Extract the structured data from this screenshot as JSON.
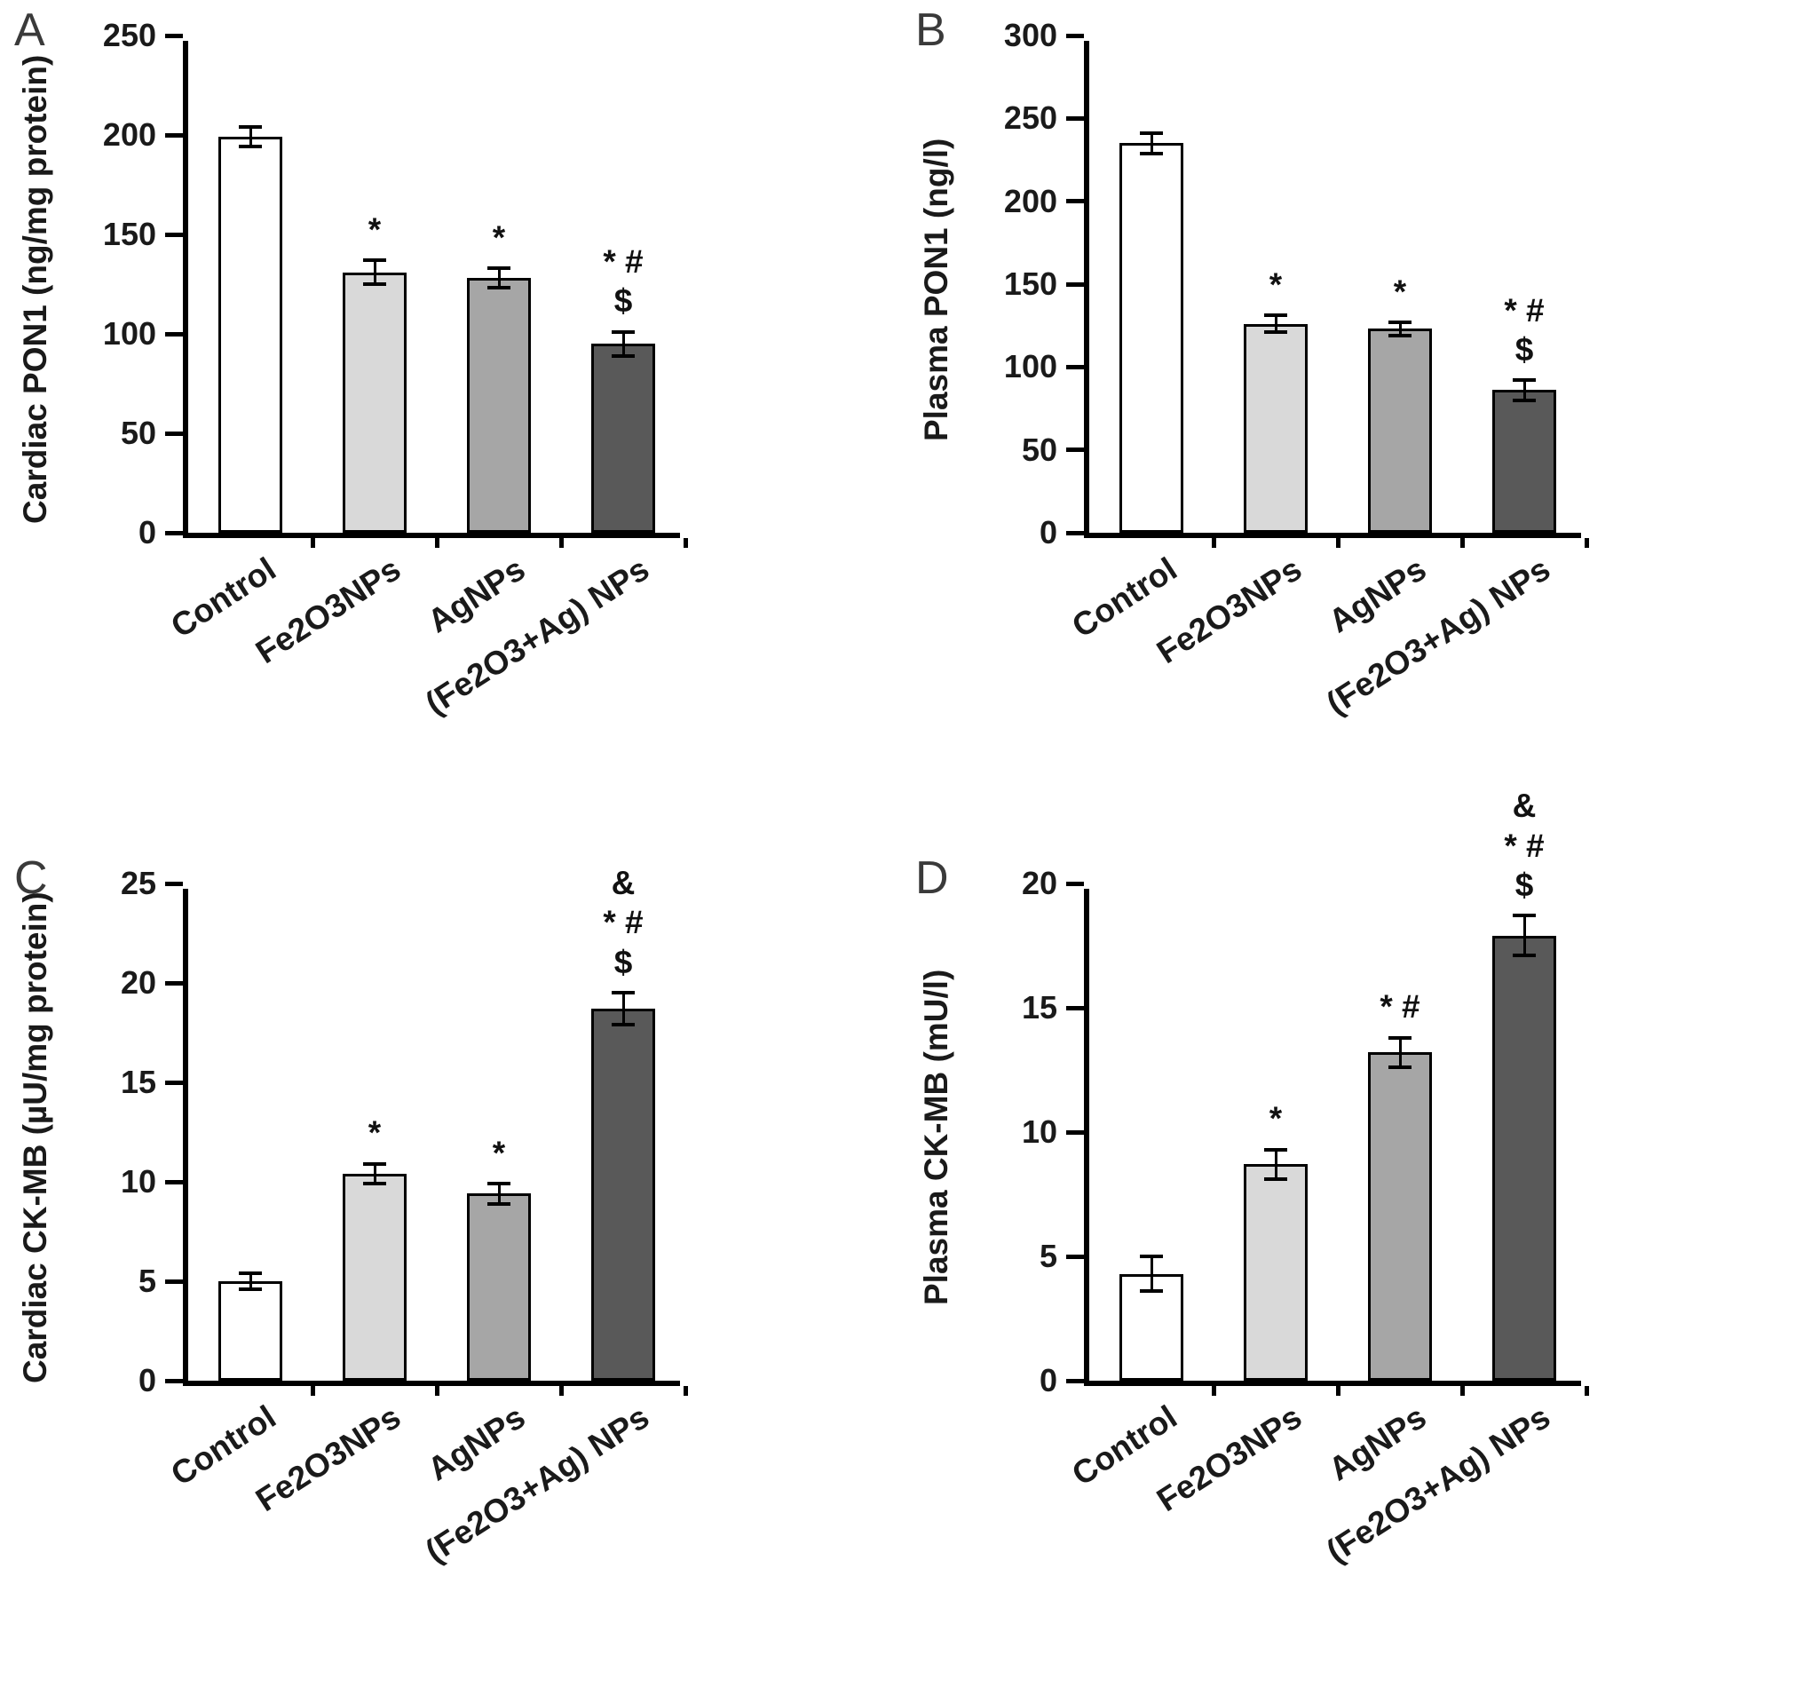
{
  "figure": {
    "background": "#ffffff",
    "text_color": "#1a1a1a",
    "axis_color": "#000000",
    "bar_border_color": "#000000",
    "bar_colors": [
      "#ffffff",
      "#d9d9d9",
      "#a6a6a6",
      "#595959"
    ]
  },
  "chart_data": [
    {
      "type": "bar",
      "panel": "A",
      "title": "",
      "ylabel": "Cardiac PON1 (ng/mg protein)",
      "xlabel": "",
      "ylim": [
        0,
        250
      ],
      "yticks": [
        0,
        50,
        100,
        150,
        200,
        250
      ],
      "grid": false,
      "legend": null,
      "categories": [
        "Control",
        "Fe2O3NPs",
        "AgNPs",
        "(Fe2O3+Ag) NPs"
      ],
      "values": [
        199,
        131,
        128,
        95
      ],
      "errors": [
        5,
        6,
        5,
        6
      ],
      "annotations": [
        [],
        [
          "*"
        ],
        [
          "*"
        ],
        [
          "* # $"
        ]
      ]
    },
    {
      "type": "bar",
      "panel": "B",
      "title": "",
      "ylabel": "Plasma PON1 (ng/l)",
      "xlabel": "",
      "ylim": [
        0,
        300
      ],
      "yticks": [
        0,
        50,
        100,
        150,
        200,
        250,
        300
      ],
      "grid": false,
      "legend": null,
      "categories": [
        "Control",
        "Fe2O3NPs",
        "AgNPs",
        "(Fe2O3+Ag) NPs"
      ],
      "values": [
        235,
        126,
        123,
        86
      ],
      "errors": [
        6,
        5,
        4,
        6
      ],
      "annotations": [
        [],
        [
          "*"
        ],
        [
          "*"
        ],
        [
          "* # $"
        ]
      ]
    },
    {
      "type": "bar",
      "panel": "C",
      "title": "",
      "ylabel": "Cardiac CK-MB (µU/mg protein)",
      "xlabel": "",
      "ylim": [
        0,
        25
      ],
      "yticks": [
        0,
        5,
        10,
        15,
        20,
        25
      ],
      "grid": false,
      "legend": null,
      "categories": [
        "Control",
        "Fe2O3NPs",
        "AgNPs",
        "(Fe2O3+Ag) NPs"
      ],
      "values": [
        5.0,
        10.4,
        9.4,
        18.7
      ],
      "errors": [
        0.4,
        0.5,
        0.5,
        0.8
      ],
      "annotations": [
        [],
        [
          "*"
        ],
        [
          "*"
        ],
        [
          "&",
          "* # $"
        ]
      ]
    },
    {
      "type": "bar",
      "panel": "D",
      "title": "",
      "ylabel": "Plasma CK-MB (mU/l)",
      "xlabel": "",
      "ylim": [
        0,
        20
      ],
      "yticks": [
        0,
        5,
        10,
        15,
        20
      ],
      "grid": false,
      "legend": null,
      "categories": [
        "Control",
        "Fe2O3NPs",
        "AgNPs",
        "(Fe2O3+Ag) NPs"
      ],
      "values": [
        4.3,
        8.7,
        13.2,
        17.9
      ],
      "errors": [
        0.7,
        0.6,
        0.6,
        0.8
      ],
      "annotations": [
        [],
        [
          "*"
        ],
        [
          "* #"
        ],
        [
          "&",
          "* # $"
        ]
      ]
    }
  ]
}
